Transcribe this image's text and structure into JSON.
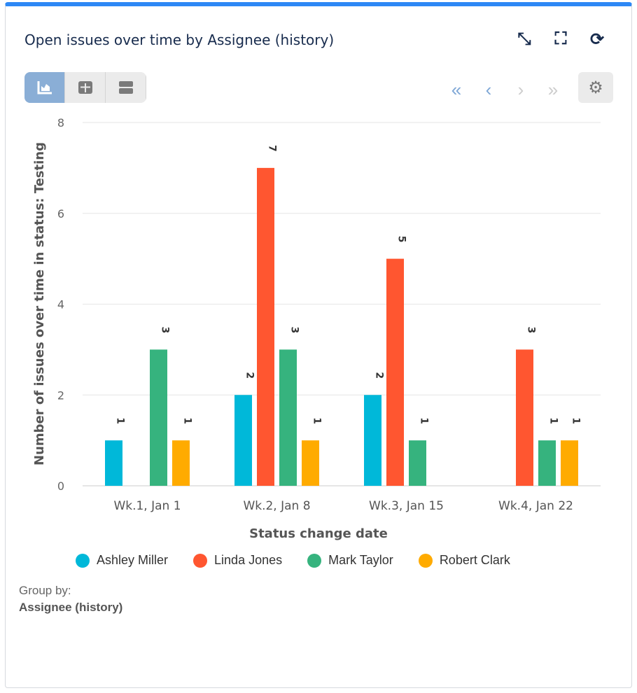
{
  "header": {
    "title": "Open issues over time by Assignee (history)",
    "icons": [
      "collapse-icon",
      "fullscreen-icon",
      "refresh-icon"
    ]
  },
  "toolbar": {
    "views": [
      "chart-view-icon",
      "table-view-icon",
      "list-view-icon"
    ],
    "active_view": 0,
    "nav": [
      "first-page-icon",
      "prev-page-icon",
      "next-page-icon",
      "last-page-icon"
    ],
    "settings": "gear-icon"
  },
  "chart_data": {
    "type": "bar",
    "categories": [
      "Wk.1, Jan 1",
      "Wk.2, Jan 8",
      "Wk.3, Jan 15",
      "Wk.4, Jan 22"
    ],
    "series": [
      {
        "name": "Ashley Miller",
        "color": "#00b8d9",
        "values": [
          1,
          2,
          2,
          null
        ]
      },
      {
        "name": "Linda Jones",
        "color": "#ff5630",
        "values": [
          null,
          7,
          5,
          3
        ]
      },
      {
        "name": "Mark Taylor",
        "color": "#36b37e",
        "values": [
          3,
          3,
          1,
          1
        ]
      },
      {
        "name": "Robert Clark",
        "color": "#ffab00",
        "values": [
          1,
          1,
          null,
          1
        ]
      }
    ],
    "xlabel": "Status change date",
    "ylabel": "Number of issues over time in status: Testing",
    "ylim": [
      0,
      8
    ],
    "yticks": [
      0,
      2,
      4,
      6,
      8
    ],
    "grid": true,
    "legend": "bottom"
  },
  "footer": {
    "group_by_label": "Group by:",
    "group_by_value": "Assignee (history)"
  }
}
